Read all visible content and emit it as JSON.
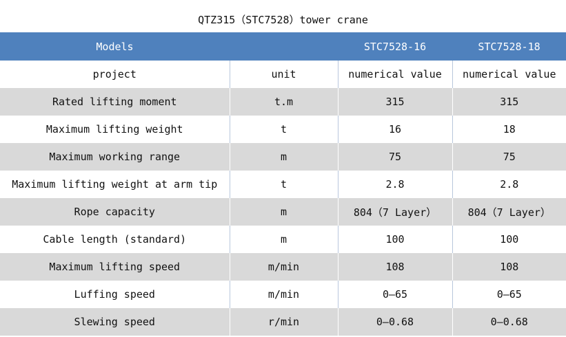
{
  "title": "QTZ315（STC7528）tower crane",
  "header": [
    "Models",
    "",
    "STC7528-16",
    "STC7528-18"
  ],
  "rows": [
    [
      "project",
      "unit",
      "numerical value",
      "numerical value"
    ],
    [
      "Rated lifting moment",
      "t.m",
      "315",
      "315"
    ],
    [
      "Maximum lifting weight",
      "t",
      "16",
      "18"
    ],
    [
      "Maximum working range",
      "m",
      "75",
      "75"
    ],
    [
      "Maximum lifting weight at arm tip",
      "t",
      "2.8",
      "2.8"
    ],
    [
      "Rope capacity",
      "m",
      "804（7 Layer）",
      "804（7 Layer）"
    ],
    [
      "Cable length (standard)",
      "m",
      "100",
      "100"
    ],
    [
      "Maximum lifting speed",
      "m/min",
      "108",
      "108"
    ],
    [
      "Luffing speed",
      "m/min",
      "0—65",
      "0—65"
    ],
    [
      "Slewing speed",
      "r/min",
      "0—0.68",
      "0—0.68"
    ]
  ],
  "colors": {
    "header": "#4f81bd",
    "stripe": "#d9d9d9"
  }
}
